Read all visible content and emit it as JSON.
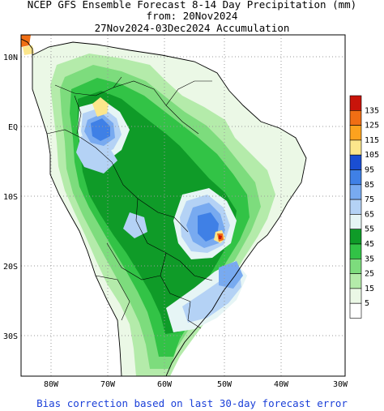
{
  "header": {
    "line1": "NCEP GFS Ensemble Forecast 8-14 Day Precipitation (mm)",
    "line2": "from: 20Nov2024",
    "line3": "27Nov2024-03Dec2024 Accumulation"
  },
  "footer": {
    "note": "Bias correction based on last 30-day forecast error"
  },
  "map": {
    "lat_labels": [
      "10N",
      "EQ",
      "10S",
      "20S",
      "30S"
    ],
    "lon_labels": [
      "80W",
      "70W",
      "60W",
      "50W",
      "40W",
      "30W"
    ],
    "colors": {
      "coast": "#000000",
      "grid": "#9a9a9a"
    }
  },
  "legend": {
    "bins": [
      {
        "label": "135",
        "color": "#c8140a"
      },
      {
        "label": "125",
        "color": "#f06e14"
      },
      {
        "label": "115",
        "color": "#fca21e"
      },
      {
        "label": "105",
        "color": "#fce68c"
      },
      {
        "label": "95",
        "color": "#1a4ed2"
      },
      {
        "label": "85",
        "color": "#3f80e6"
      },
      {
        "label": "75",
        "color": "#78aaf0"
      },
      {
        "label": "65",
        "color": "#b4d2f5"
      },
      {
        "label": "55",
        "color": "#e6f5f5"
      },
      {
        "label": "45",
        "color": "#0f9b28"
      },
      {
        "label": "35",
        "color": "#32c346"
      },
      {
        "label": "25",
        "color": "#7ddc7d"
      },
      {
        "label": "15",
        "color": "#b4ebaa"
      },
      {
        "label": "5",
        "color": "#ebf8e6"
      },
      {
        "label": "",
        "color": "#ffffff"
      }
    ]
  }
}
